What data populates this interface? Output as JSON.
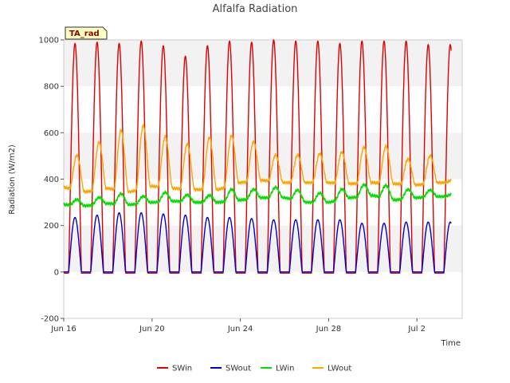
{
  "chart_data": {
    "type": "line",
    "title": "Alfalfa Radiation",
    "xlabel": "Time",
    "ylabel": "Radiation (W/m2)",
    "badge": "TA_rad",
    "ylim": [
      -200,
      1000
    ],
    "y_ticks": [
      -200,
      0,
      200,
      400,
      600,
      800,
      1000
    ],
    "x_ticks": [
      {
        "day": 0,
        "label": "Jun 16"
      },
      {
        "day": 4,
        "label": "Jun 20"
      },
      {
        "day": 8,
        "label": "Jun 24"
      },
      {
        "day": 12,
        "label": "Jun 28"
      },
      {
        "day": 16,
        "label": "Jul 2"
      }
    ],
    "xlim_days": [
      0,
      18.05
    ],
    "x_unit": "days since Jun 16",
    "grid": "horizontal bands",
    "legend_position": "bottom",
    "series": [
      {
        "name": "SWin",
        "color": "#e00000",
        "kind": "solar",
        "night": -5,
        "daily_peak": [
          985,
          990,
          985,
          995,
          975,
          930,
          975,
          995,
          990,
          1000,
          995,
          995,
          985,
          995,
          995,
          995,
          980
        ]
      },
      {
        "name": "SWout",
        "color": "#0000cc",
        "kind": "solar",
        "night": 0,
        "daily_peak": [
          235,
          245,
          255,
          255,
          250,
          245,
          235,
          235,
          230,
          225,
          225,
          225,
          225,
          210,
          210,
          215,
          215
        ]
      },
      {
        "name": "LWin",
        "color": "#00e000",
        "kind": "longwave",
        "daily_base": [
          290,
          285,
          295,
          290,
          300,
          305,
          300,
          300,
          310,
          320,
          320,
          300,
          300,
          320,
          330,
          310,
          320,
          325
        ],
        "daily_amp": [
          25,
          30,
          45,
          30,
          40,
          30,
          30,
          50,
          40,
          45,
          45,
          40,
          45,
          50,
          55,
          40,
          30,
          10
        ]
      },
      {
        "name": "LWout",
        "color": "#ffa500",
        "kind": "longwave",
        "daily_base": [
          365,
          345,
          360,
          345,
          370,
          360,
          355,
          355,
          385,
          395,
          385,
          385,
          385,
          380,
          385,
          380,
          375,
          385
        ],
        "daily_amp": [
          150,
          205,
          260,
          270,
          220,
          195,
          225,
          215,
          170,
          115,
          120,
          125,
          135,
          155,
          160,
          110,
          120,
          10
        ]
      }
    ]
  }
}
